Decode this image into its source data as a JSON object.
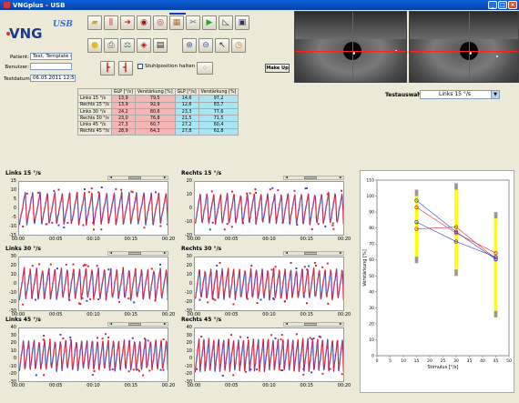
{
  "window": {
    "title": "VNGplus - USB",
    "minimize": "_",
    "maximize": "□",
    "close": "×"
  },
  "logo": {
    "main": "VNG",
    "sub": "USB"
  },
  "patient": {
    "patient_label": "Patient:",
    "patient_value": "Test, Template (27)",
    "user_label": "Benutzer:",
    "user_value": "",
    "date_label": "Testdatum:",
    "date_value": "06.05.2011 12:50:18"
  },
  "toolbar": {
    "row1": [
      "folder-icon",
      "bars-icon",
      "arrows-icon",
      "eye-icon",
      "target-icon",
      "box-icon",
      "tools-icon",
      "play-icon",
      "triangle-icon",
      "save-icon"
    ],
    "row2": [
      "bulb-icon",
      "print-icon",
      "scale-icon",
      "eye-red-icon",
      "clapper-icon"
    ],
    "row2b": [
      "zoom-in-icon",
      "zoom-out-icon",
      "cursor-icon",
      "clock-icon"
    ],
    "row3": [
      "chair-left-icon",
      "chair-right-icon"
    ],
    "stuhl_label": "Stuhlposition halten",
    "makeup_label": "Make Up"
  },
  "stats_table": {
    "headers": [
      "",
      "GLP [°/s]",
      "Verstärkung [%]",
      "GLP [°/s]",
      "Verstärkung [%]"
    ],
    "rows": [
      [
        "Links 15 °/s",
        "13,9",
        "79,5",
        "14,6",
        "97,2"
      ],
      [
        "Rechts 15 °/s",
        "13,9",
        "92,9",
        "12,6",
        "83,7"
      ],
      [
        "Links 30 °/s",
        "24,2",
        "80,6",
        "23,3",
        "77,6"
      ],
      [
        "Rechts 30 °/s",
        "23,0",
        "76,8",
        "21,5",
        "71,5"
      ],
      [
        "Links 45 °/s",
        "27,3",
        "60,7",
        "27,2",
        "60,4"
      ],
      [
        "Rechts 45 °/s",
        "28,9",
        "64,3",
        "27,8",
        "61,8"
      ]
    ]
  },
  "testauswahl": {
    "label": "Testauswahl",
    "selected": "Links 15 °/s",
    "arrow": "▼"
  },
  "plots": {
    "titles": [
      "Links 15 °/s",
      "Rechts 15 °/s",
      "Links 30 °/s",
      "Rechts 30 °/s",
      "Links 45 °/s",
      "Rechts 45 °/s"
    ],
    "xticks": [
      "00:00",
      "00:05",
      "00:10",
      "00:15",
      "00:20"
    ],
    "scroll_left": "◄",
    "scroll_right": "►",
    "yticks_15": [
      "15",
      "10",
      "5",
      "0",
      "-5",
      "-10",
      "-15"
    ],
    "yticks_15r": [
      "20",
      "10",
      "0",
      "-10",
      "-20"
    ],
    "yticks_30": [
      "30",
      "20",
      "10",
      "0",
      "-10",
      "-20",
      "-30"
    ],
    "yticks_45": [
      "40",
      "30",
      "20",
      "10",
      "0",
      "-10",
      "-20",
      "-30"
    ]
  },
  "chart_data": {
    "type": "scatter",
    "xlabel": "Stimulus [°/s]",
    "ylabel": "Verstärkung [%]",
    "xlim": [
      0,
      50
    ],
    "ylim": [
      0,
      110
    ],
    "xticks": [
      "0",
      "5",
      "10",
      "15",
      "20",
      "25",
      "30",
      "35",
      "40",
      "45",
      "50"
    ],
    "yticks": [
      "0",
      "10",
      "20",
      "30",
      "40",
      "50",
      "60",
      "70",
      "80",
      "90",
      "100",
      "110"
    ],
    "normal_ranges": [
      {
        "x": 15,
        "min": 58,
        "max": 104
      },
      {
        "x": 30,
        "min": 50,
        "max": 108
      },
      {
        "x": 45,
        "min": 24,
        "max": 90
      }
    ],
    "series": [
      {
        "values": [
          [
            15,
            79.5
          ],
          [
            30,
            80.6
          ],
          [
            45,
            60.7
          ]
        ],
        "color": "#e03030"
      },
      {
        "values": [
          [
            15,
            92.9
          ],
          [
            30,
            76.8
          ],
          [
            45,
            64.3
          ]
        ],
        "color": "#e03030"
      },
      {
        "values": [
          [
            15,
            97.2
          ],
          [
            30,
            77.6
          ],
          [
            45,
            60.4
          ]
        ],
        "color": "#3040d0"
      },
      {
        "values": [
          [
            15,
            83.7
          ],
          [
            30,
            71.5
          ],
          [
            45,
            61.8
          ]
        ],
        "color": "#3040d0"
      }
    ],
    "colors": {
      "box_fill": "#ffff00",
      "box_cap": "#999999"
    }
  }
}
